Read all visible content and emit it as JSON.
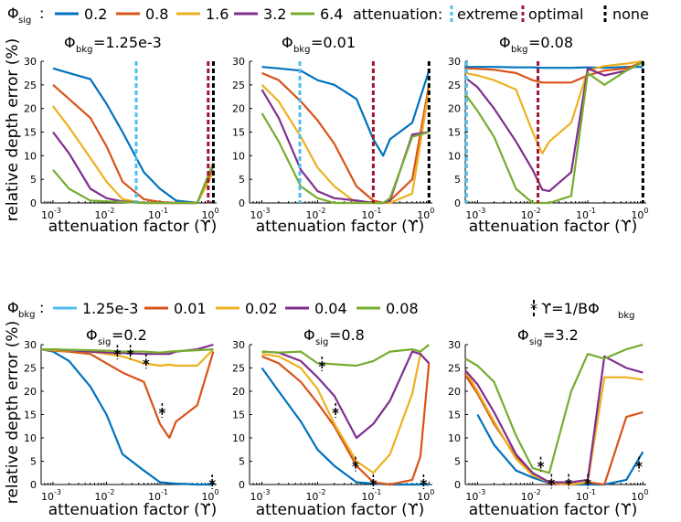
{
  "colors": {
    "series": [
      "#0072bd",
      "#d95319",
      "#edb120",
      "#7e2f8e",
      "#77ac30"
    ],
    "extreme": "#4dbeee",
    "optimal": "#a2142f",
    "none": "#000000"
  },
  "legend_top": {
    "symbol": "Φ",
    "symbol_sub": "sig",
    "separator": ":",
    "entries": [
      "0.2",
      "0.8",
      "1.6",
      "3.2",
      "6.4"
    ],
    "attenuation_label": "attenuation:",
    "attenuation_entries": [
      "extreme",
      "optimal",
      "none"
    ]
  },
  "legend_bottom": {
    "symbol": "Φ",
    "symbol_sub": "bkg",
    "separator": ":",
    "entries": [
      "1.25e-3",
      "0.01",
      "0.02",
      "0.04",
      "0.08"
    ],
    "marker_label_main": "ϒ=1/BΦ",
    "marker_label_sub": "bkg"
  },
  "chart_data": [
    {
      "type": "line",
      "title": "Φ_bkg=1.25e-3",
      "title_main": "Φ",
      "title_sub": "bkg",
      "title_value": "=1.25e-3",
      "xlabel": "attenuation factor (ϒ)",
      "ylabel": "relative depth error (%)",
      "x_scale": "log",
      "xlim": [
        0.0006,
        1.15
      ],
      "ylim": [
        0,
        30
      ],
      "x_ticks": [
        "10-3",
        "10-2",
        "10-1",
        "100"
      ],
      "y_ticks": [
        0,
        5,
        10,
        15,
        20,
        25,
        30
      ],
      "x": [
        0.001,
        0.002,
        0.005,
        0.01,
        0.02,
        0.05,
        0.1,
        0.2,
        0.5,
        1.0
      ],
      "series": [
        {
          "values": [
            28.5,
            27.5,
            26.2,
            21,
            15,
            6.5,
            3,
            0.5,
            0,
            8
          ]
        },
        {
          "values": [
            25,
            22,
            18,
            12,
            4.5,
            0.8,
            0.2,
            0,
            0,
            7
          ]
        },
        {
          "values": [
            20.5,
            16,
            9.5,
            4.5,
            0.8,
            0,
            0,
            0,
            0,
            6.5
          ]
        },
        {
          "values": [
            15,
            10.5,
            3,
            1,
            0.3,
            0,
            0,
            0,
            0,
            8.5
          ]
        },
        {
          "values": [
            7,
            3,
            0.5,
            0.3,
            0.2,
            0,
            0,
            0,
            0,
            8.5
          ]
        }
      ],
      "vlines": [
        {
          "x": 0.036,
          "kind": "extreme"
        },
        {
          "x": 0.8,
          "kind": "optimal"
        },
        {
          "x": 1.0,
          "kind": "none"
        }
      ]
    },
    {
      "type": "line",
      "title": "Φ_bkg=0.01",
      "title_main": "Φ",
      "title_sub": "bkg",
      "title_value": "=0.01",
      "xlabel": "attenuation factor (ϒ)",
      "ylabel": "",
      "x_scale": "log",
      "xlim": [
        0.0006,
        1.15
      ],
      "ylim": [
        0,
        30
      ],
      "x_ticks": [
        "10-3",
        "10-2",
        "10-1",
        "100"
      ],
      "y_ticks": [
        0,
        5,
        10,
        15,
        20,
        25,
        30
      ],
      "x": [
        0.001,
        0.002,
        0.005,
        0.01,
        0.02,
        0.05,
        0.1,
        0.15,
        0.2,
        0.5,
        1.0
      ],
      "series": [
        {
          "values": [
            28.8,
            28.5,
            28,
            26,
            25,
            22,
            13.5,
            10,
            13.5,
            17,
            28
          ]
        },
        {
          "values": [
            27.5,
            26,
            21.5,
            17.5,
            12.5,
            3.5,
            0.5,
            0,
            0.5,
            5,
            25
          ]
        },
        {
          "values": [
            25,
            21.5,
            14,
            7.5,
            3.5,
            0,
            0,
            0,
            0,
            2,
            24
          ]
        },
        {
          "values": [
            24,
            18,
            7,
            2.5,
            1,
            0.5,
            0,
            0,
            0.5,
            14.5,
            15
          ]
        },
        {
          "values": [
            19,
            13,
            3.5,
            1,
            0,
            0,
            0,
            0,
            1,
            14,
            15
          ]
        }
      ],
      "vlines": [
        {
          "x": 0.0048,
          "kind": "extreme"
        },
        {
          "x": 0.1,
          "kind": "optimal"
        },
        {
          "x": 1.0,
          "kind": "none"
        }
      ]
    },
    {
      "type": "line",
      "title": "Φ_bkg=0.08",
      "title_main": "Φ",
      "title_sub": "bkg",
      "title_value": "=0.08",
      "xlabel": "attenuation factor (ϒ)",
      "ylabel": "",
      "x_scale": "log",
      "xlim": [
        0.0006,
        1.15
      ],
      "ylim": [
        0,
        30
      ],
      "x_ticks": [
        "10-3",
        "10-2",
        "10-1",
        "100"
      ],
      "y_ticks": [
        0,
        5,
        10,
        15,
        20,
        25,
        30
      ],
      "x": [
        0.0006,
        0.001,
        0.002,
        0.005,
        0.01,
        0.015,
        0.02,
        0.05,
        0.1,
        0.2,
        0.5,
        1.0
      ],
      "series": [
        {
          "values": [
            28.8,
            28.8,
            28.8,
            28.7,
            28.7,
            28.6,
            28.6,
            28.6,
            28.7,
            28.6,
            28.8,
            28.8
          ]
        },
        {
          "values": [
            28.5,
            28.4,
            28.2,
            27.5,
            26,
            25.5,
            25.5,
            25.5,
            27,
            28,
            28.5,
            29.8
          ]
        },
        {
          "values": [
            27.5,
            27,
            26,
            24,
            15,
            10.5,
            13,
            17,
            28,
            29,
            29.5,
            30
          ]
        },
        {
          "values": [
            26.5,
            24.5,
            20,
            13,
            7,
            2.8,
            2.5,
            6.5,
            28.5,
            27,
            28,
            29.8
          ]
        },
        {
          "values": [
            23,
            19.5,
            14,
            3,
            0,
            0,
            0,
            1.5,
            27.5,
            25,
            28,
            29.8
          ]
        }
      ],
      "vlines": [
        {
          "x": 0.00063,
          "kind": "extreme"
        },
        {
          "x": 0.0125,
          "kind": "optimal"
        },
        {
          "x": 1.0,
          "kind": "none"
        }
      ]
    },
    {
      "type": "line",
      "title": "Φ_sig=0.2",
      "title_main": "Φ",
      "title_sub": "sig",
      "title_value": "=0.2",
      "xlabel": "attenuation factor (ϒ)",
      "ylabel": "relative depth error (%)",
      "x_scale": "log",
      "xlim": [
        0.0006,
        1.15
      ],
      "ylim": [
        0,
        30
      ],
      "x_ticks": [
        "10-3",
        "10-2",
        "10-1",
        "100"
      ],
      "y_ticks": [
        0,
        5,
        10,
        15,
        20,
        25,
        30
      ],
      "x": [
        0.0006,
        0.001,
        0.002,
        0.005,
        0.01,
        0.02,
        0.05,
        0.1,
        0.15,
        0.2,
        0.5,
        1.0
      ],
      "series": [
        {
          "values": [
            29,
            28.5,
            26.5,
            21,
            15,
            6.5,
            3,
            0.5,
            0.3,
            0.2,
            0,
            0
          ]
        },
        {
          "values": [
            29,
            28.7,
            28.5,
            28,
            26,
            24,
            22,
            13,
            10,
            13.5,
            17,
            28.5
          ]
        },
        {
          "values": [
            29,
            28.8,
            28.7,
            28.5,
            28,
            27.5,
            26,
            25.5,
            25.7,
            25.5,
            25.5,
            29
          ]
        },
        {
          "values": [
            29,
            29,
            28.8,
            28.5,
            28.3,
            28.2,
            28,
            28,
            28,
            28.5,
            29,
            30
          ]
        },
        {
          "values": [
            29,
            29,
            28.9,
            28.8,
            28.7,
            28.5,
            28.5,
            28.3,
            28.5,
            28.6,
            28.8,
            29
          ]
        }
      ],
      "markers": [
        {
          "x": 0.016,
          "y": 28
        },
        {
          "x": 0.028,
          "y": 28
        },
        {
          "x": 0.055,
          "y": 26
        },
        {
          "x": 0.11,
          "y": 15.5
        },
        {
          "x": 0.95,
          "y": 0.2
        }
      ]
    },
    {
      "type": "line",
      "title": "Φ_sig=0.8",
      "title_main": "Φ",
      "title_sub": "sig",
      "title_value": "=0.8",
      "xlabel": "attenuation factor (ϒ)",
      "ylabel": "",
      "x_scale": "log",
      "xlim": [
        0.0006,
        1.15
      ],
      "ylim": [
        0,
        30
      ],
      "x_ticks": [
        "10-3",
        "10-2",
        "10-1",
        "100"
      ],
      "y_ticks": [
        0,
        5,
        10,
        15,
        20,
        25,
        30
      ],
      "x": [
        0.001,
        0.002,
        0.005,
        0.01,
        0.02,
        0.05,
        0.1,
        0.2,
        0.5,
        0.7,
        1.0
      ],
      "series": [
        {
          "values": [
            25,
            20,
            13.5,
            7.5,
            4,
            0.5,
            0.2,
            0,
            0,
            0,
            0
          ]
        },
        {
          "values": [
            27.5,
            26,
            22,
            17.5,
            12.5,
            4,
            0.5,
            0,
            1,
            6,
            26
          ]
        },
        {
          "values": [
            28,
            27.5,
            25,
            20.5,
            13,
            5,
            2.5,
            6.5,
            19.5,
            28,
            26
          ]
        },
        {
          "values": [
            28.5,
            28.3,
            26.5,
            23,
            19,
            10,
            13,
            18,
            28.5,
            28,
            26
          ]
        },
        {
          "values": [
            28.5,
            28.3,
            28.5,
            26,
            25.8,
            25.5,
            26.5,
            28.5,
            29,
            28.5,
            30
          ]
        }
      ],
      "markers": [
        {
          "x": 0.012,
          "y": 25.5
        },
        {
          "x": 0.021,
          "y": 15.5
        },
        {
          "x": 0.048,
          "y": 4
        },
        {
          "x": 0.1,
          "y": 0.2
        },
        {
          "x": 0.8,
          "y": 0.2
        }
      ]
    },
    {
      "type": "line",
      "title": "Φ_sig=3.2",
      "title_main": "Φ",
      "title_sub": "sig",
      "title_value": "=3.2",
      "xlabel": "attenuation factor (ϒ)",
      "ylabel": "",
      "x_scale": "log",
      "xlim": [
        0.0006,
        1.15
      ],
      "ylim": [
        0,
        30
      ],
      "x_ticks": [
        "10-3",
        "10-2",
        "10-1",
        "100"
      ],
      "y_ticks": [
        0,
        5,
        10,
        15,
        20,
        25,
        30
      ],
      "x": [
        0.0006,
        0.001,
        0.002,
        0.005,
        0.01,
        0.02,
        0.05,
        0.1,
        0.2,
        0.5,
        1.0
      ],
      "series": [
        {
          "values": [
            null,
            15,
            8.5,
            3,
            1.5,
            0.3,
            0,
            0,
            0,
            1,
            7
          ]
        },
        {
          "values": [
            23.5,
            19.5,
            13,
            6,
            2.5,
            0.3,
            0,
            0.5,
            0,
            14.5,
            15.5
          ]
        },
        {
          "values": [
            24.5,
            20,
            13.5,
            5.5,
            2,
            0.5,
            0,
            0.5,
            23,
            23,
            22.5
          ]
        },
        {
          "values": [
            24.5,
            21.5,
            15.5,
            6.5,
            2.5,
            0.5,
            0.5,
            1,
            27.5,
            25,
            24
          ]
        },
        {
          "values": [
            27,
            25.5,
            22,
            10.5,
            3.5,
            2.5,
            20,
            28,
            27,
            29,
            30
          ]
        }
      ],
      "markers": [
        {
          "x": 0.014,
          "y": 4
        },
        {
          "x": 0.022,
          "y": 0.3
        },
        {
          "x": 0.045,
          "y": 0.3
        },
        {
          "x": 0.1,
          "y": 0.3
        },
        {
          "x": 0.85,
          "y": 4
        }
      ]
    }
  ]
}
